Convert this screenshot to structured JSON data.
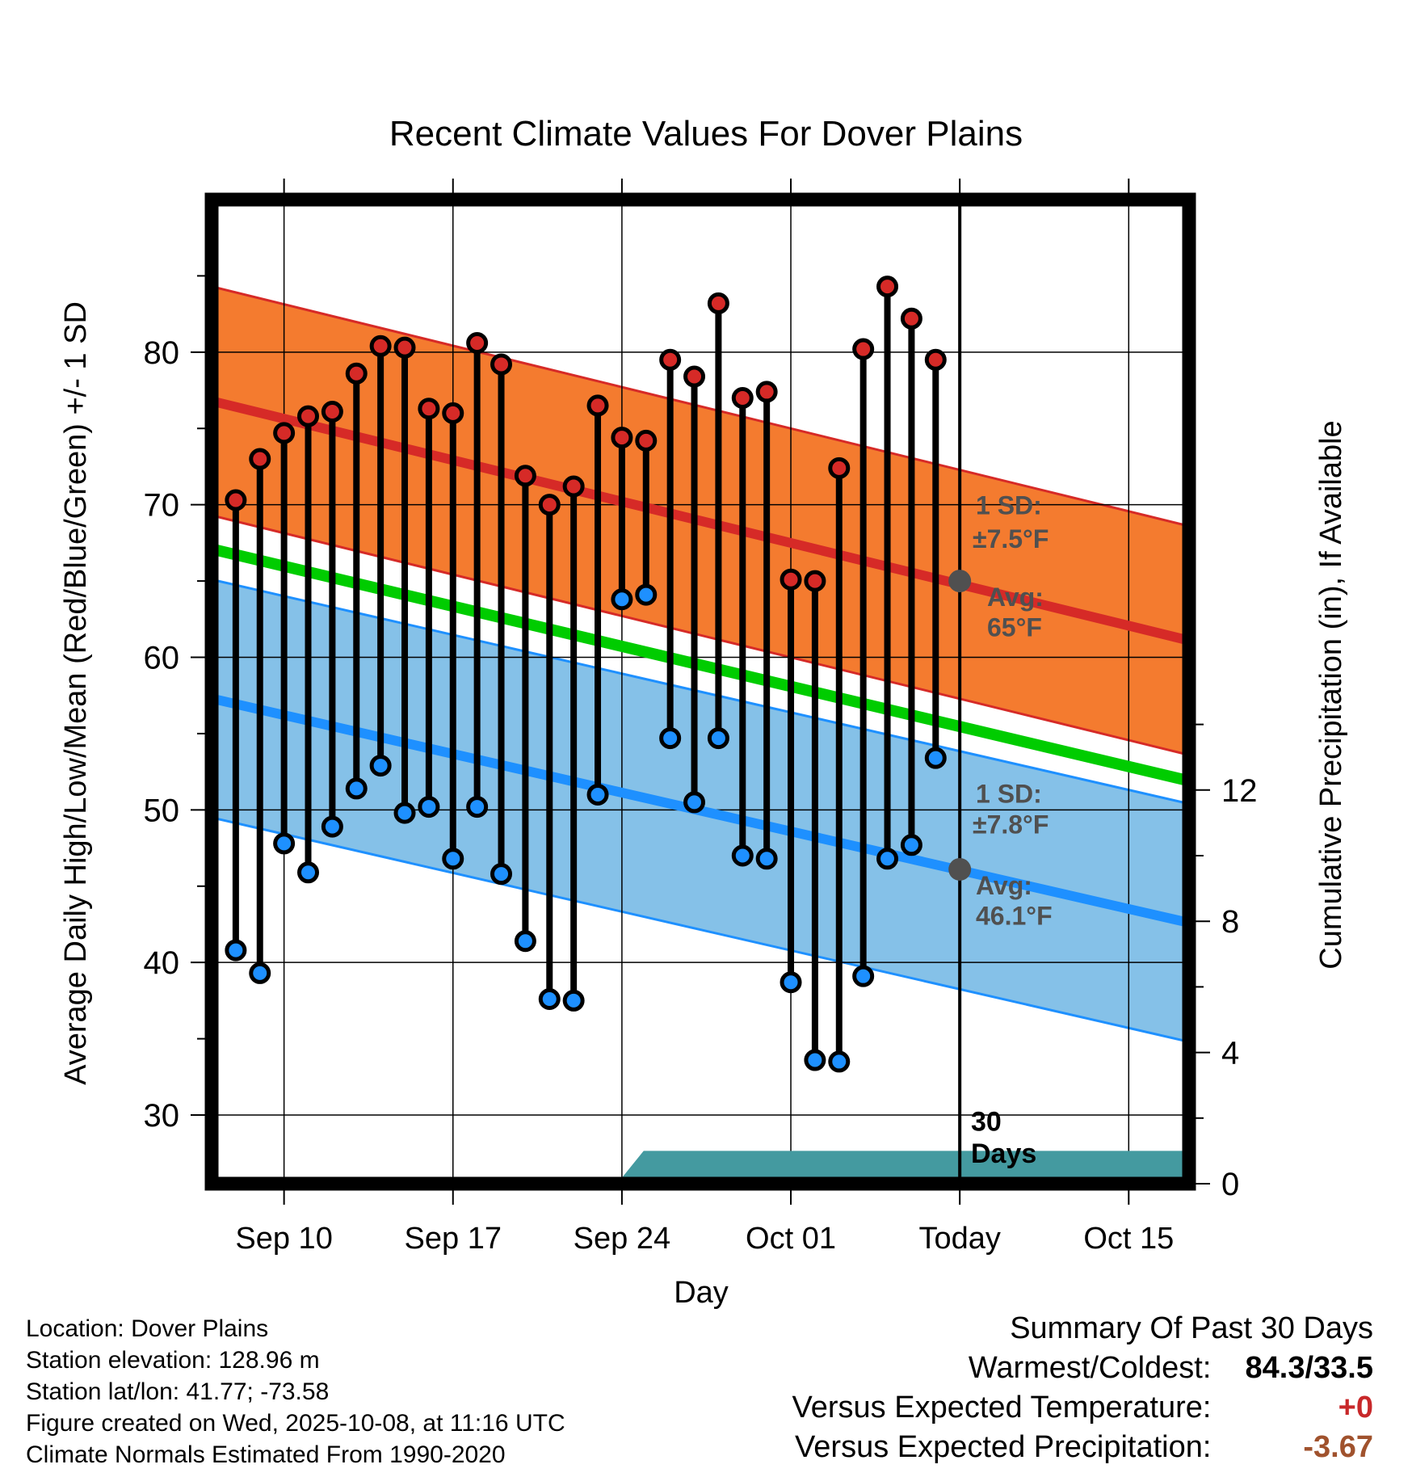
{
  "chart_data": {
    "type": "line",
    "title": "Recent Climate Values For Dover Plains",
    "xlabel": "Day",
    "ylabel": "Average Daily High/Low/Mean (Red/Blue/Green) +/- 1 SD",
    "y2label": "Cumulative Precipitation (in), If Available",
    "x_ticks": [
      "Sep 10",
      "Sep 17",
      "Sep 24",
      "Oct 01",
      "Today",
      "Oct 15"
    ],
    "x_tick_days": [
      3,
      10,
      17,
      24,
      31,
      38
    ],
    "xlim": [
      0,
      40.5
    ],
    "ylim": [
      25.5,
      90
    ],
    "y_ticks": [
      30,
      40,
      50,
      60,
      70,
      80
    ],
    "y2lim": [
      0,
      30
    ],
    "y2_ticks": [
      0,
      4,
      8,
      12
    ],
    "today_day": 31,
    "days": [
      "Sep 08",
      "Sep 09",
      "Sep 10",
      "Sep 11",
      "Sep 12",
      "Sep 13",
      "Sep 14",
      "Sep 15",
      "Sep 16",
      "Sep 17",
      "Sep 18",
      "Sep 19",
      "Sep 20",
      "Sep 21",
      "Sep 22",
      "Sep 23",
      "Sep 24",
      "Sep 25",
      "Sep 26",
      "Sep 27",
      "Sep 28",
      "Sep 29",
      "Sep 30",
      "Oct 01",
      "Oct 02",
      "Oct 03",
      "Oct 04",
      "Oct 05",
      "Oct 06",
      "Oct 07"
    ],
    "day_index": [
      1,
      2,
      3,
      4,
      5,
      6,
      7,
      8,
      9,
      10,
      11,
      12,
      13,
      14,
      15,
      16,
      17,
      18,
      19,
      20,
      21,
      22,
      23,
      24,
      25,
      26,
      27,
      28,
      29,
      30
    ],
    "highs": [
      70.3,
      73.0,
      74.7,
      75.8,
      76.1,
      78.6,
      80.4,
      80.3,
      76.3,
      76.0,
      80.6,
      79.2,
      71.9,
      70.0,
      71.2,
      76.5,
      74.4,
      74.2,
      79.5,
      78.4,
      83.2,
      77.0,
      77.4,
      65.1,
      65.0,
      72.4,
      80.2,
      84.3,
      82.2,
      79.5
    ],
    "lows": [
      40.8,
      39.3,
      47.8,
      45.9,
      48.9,
      51.4,
      52.9,
      49.8,
      50.2,
      46.8,
      50.2,
      45.8,
      41.4,
      37.6,
      37.5,
      51.0,
      63.8,
      64.1,
      54.7,
      50.5,
      54.7,
      47.0,
      46.8,
      38.7,
      33.6,
      33.5,
      39.1,
      46.8,
      47.7,
      53.4
    ],
    "normal_high": {
      "days": [
        0,
        40.5
      ],
      "values": [
        76.8,
        61.1
      ],
      "sd": 7.5
    },
    "normal_low": {
      "days": [
        0,
        40.5
      ],
      "values": [
        57.3,
        42.6
      ],
      "sd": 7.8
    },
    "normal_mean": {
      "days": [
        0,
        40.5
      ],
      "values": [
        67.1,
        51.9
      ]
    },
    "precip": {
      "days": [
        0,
        16.8,
        17.9,
        40.5
      ],
      "values": [
        0,
        0,
        1.0,
        1.0
      ]
    },
    "annotations": {
      "high_sd_title": "1 SD:",
      "high_sd_value": "±7.5°F",
      "high_avg_title": "Avg:",
      "high_avg_value": "65°F",
      "high_avg_marker": 65,
      "low_sd_title": "1 SD:",
      "low_sd_value": "±7.8°F",
      "low_avg_title": "Avg:",
      "low_avg_value": "46.1°F",
      "low_avg_marker": 46.1,
      "window_label_1": "30",
      "window_label_2": "Days"
    },
    "colors": {
      "high_band": "#f47b2f",
      "high_line": "#d62a27",
      "low_band": "#85c1e8",
      "low_line": "#1e90ff",
      "mean_line": "#00cc00",
      "precip_fill": "#449aa0",
      "high_marker": "#d62a27",
      "low_marker": "#1e90ff",
      "avg_marker": "#505050",
      "annotation_text": "#505050"
    }
  },
  "info": {
    "location": "Location: Dover Plains",
    "elevation": "Station elevation: 128.96 m",
    "latlon": "Station lat/lon: 41.77; -73.58",
    "created": "Figure created on Wed, 2025-10-08, at 11:16 UTC",
    "normals": "Climate Normals Estimated From 1990-2020"
  },
  "summary": {
    "title": "Summary Of Past 30 Days",
    "warm_cold_label": "Warmest/Coldest:",
    "warm_cold_value": "84.3/33.5",
    "temp_label": "Versus Expected Temperature:",
    "temp_value": "+0",
    "temp_color": "#c8282a",
    "precip_label": "Versus Expected Precipitation:",
    "precip_value": "-3.67",
    "precip_color": "#a0522d"
  }
}
